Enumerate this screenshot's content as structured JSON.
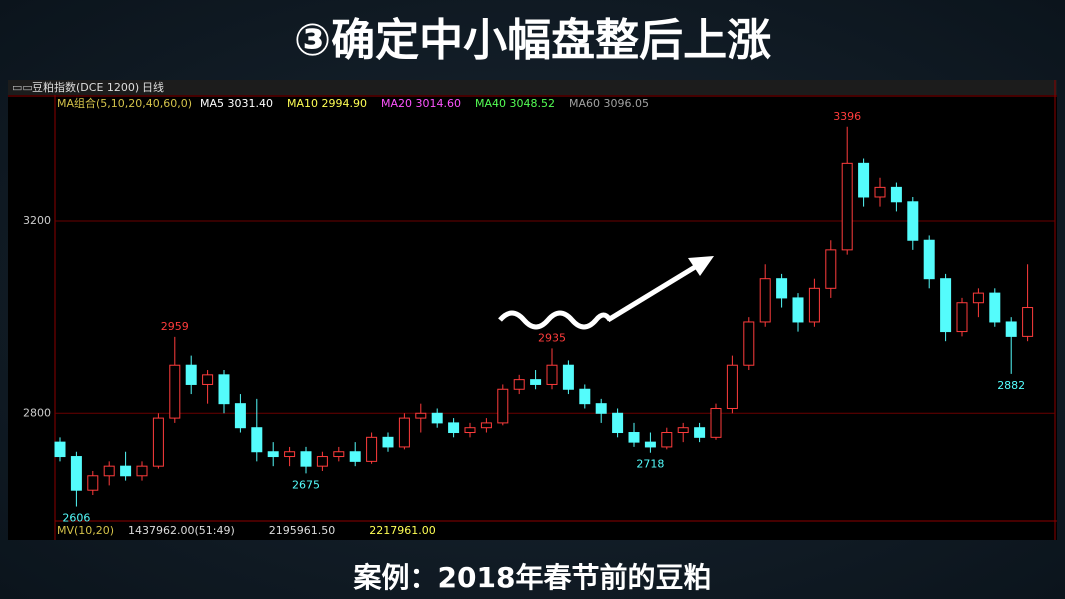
{
  "title": "③确定中小幅盘整后上涨",
  "caption": "案例：2018年春节前的豆粕",
  "chart_data": {
    "type": "candlestick",
    "symbol": "豆粕指数(DCE 1200)",
    "period": "日线",
    "indicator_title": "MA组合(5,10,20,40,60,0)",
    "indicators": [
      {
        "label": "MA5 3031.40",
        "color": "#ffffff"
      },
      {
        "label": "MA10 2994.90",
        "color": "#ffff54"
      },
      {
        "label": "MA20 3014.60",
        "color": "#ff54ff"
      },
      {
        "label": "MA40 3048.52",
        "color": "#54ff54"
      },
      {
        "label": "MA60 3096.05",
        "color": "#a0a0a0"
      }
    ],
    "volume_title": "MV(10,20)",
    "volume_labels": [
      "1437962.00(51:49)",
      "2195961.50",
      "2217961.00"
    ],
    "up_color": "#ff3c3c",
    "down_color": "#54fcfc",
    "ylim": [
      2578,
      3458
    ],
    "yticks": [
      2800,
      3200
    ],
    "grid": true,
    "candles": [
      [
        2740,
        2750,
        2700,
        2710
      ],
      [
        2710,
        2720,
        2606,
        2640
      ],
      [
        2640,
        2680,
        2630,
        2670
      ],
      [
        2670,
        2700,
        2650,
        2690
      ],
      [
        2690,
        2720,
        2660,
        2670
      ],
      [
        2670,
        2700,
        2660,
        2690
      ],
      [
        2690,
        2800,
        2685,
        2790
      ],
      [
        2790,
        2959,
        2780,
        2900
      ],
      [
        2900,
        2920,
        2840,
        2860
      ],
      [
        2860,
        2890,
        2820,
        2880
      ],
      [
        2880,
        2890,
        2800,
        2820
      ],
      [
        2820,
        2840,
        2760,
        2770
      ],
      [
        2770,
        2830,
        2700,
        2720
      ],
      [
        2720,
        2740,
        2690,
        2710
      ],
      [
        2710,
        2730,
        2690,
        2720
      ],
      [
        2720,
        2730,
        2675,
        2690
      ],
      [
        2690,
        2720,
        2680,
        2710
      ],
      [
        2710,
        2730,
        2700,
        2720
      ],
      [
        2720,
        2740,
        2690,
        2700
      ],
      [
        2700,
        2760,
        2695,
        2750
      ],
      [
        2750,
        2760,
        2720,
        2730
      ],
      [
        2730,
        2800,
        2725,
        2790
      ],
      [
        2790,
        2820,
        2760,
        2800
      ],
      [
        2800,
        2810,
        2770,
        2780
      ],
      [
        2780,
        2790,
        2750,
        2760
      ],
      [
        2760,
        2780,
        2750,
        2770
      ],
      [
        2770,
        2790,
        2760,
        2780
      ],
      [
        2780,
        2860,
        2775,
        2850
      ],
      [
        2850,
        2880,
        2840,
        2870
      ],
      [
        2870,
        2890,
        2850,
        2860
      ],
      [
        2860,
        2935,
        2850,
        2900
      ],
      [
        2900,
        2910,
        2840,
        2850
      ],
      [
        2850,
        2860,
        2810,
        2820
      ],
      [
        2820,
        2830,
        2780,
        2800
      ],
      [
        2800,
        2810,
        2750,
        2760
      ],
      [
        2760,
        2780,
        2730,
        2740
      ],
      [
        2740,
        2760,
        2718,
        2730
      ],
      [
        2730,
        2770,
        2725,
        2760
      ],
      [
        2760,
        2780,
        2740,
        2770
      ],
      [
        2770,
        2780,
        2740,
        2750
      ],
      [
        2750,
        2820,
        2745,
        2810
      ],
      [
        2810,
        2920,
        2800,
        2900
      ],
      [
        2900,
        3000,
        2890,
        2990
      ],
      [
        2990,
        3110,
        2980,
        3080
      ],
      [
        3080,
        3090,
        3020,
        3040
      ],
      [
        3040,
        3050,
        2970,
        2990
      ],
      [
        2990,
        3080,
        2980,
        3060
      ],
      [
        3060,
        3160,
        3040,
        3140
      ],
      [
        3140,
        3396,
        3130,
        3320
      ],
      [
        3320,
        3330,
        3230,
        3250
      ],
      [
        3250,
        3290,
        3230,
        3270
      ],
      [
        3270,
        3280,
        3220,
        3240
      ],
      [
        3240,
        3250,
        3140,
        3160
      ],
      [
        3160,
        3170,
        3060,
        3080
      ],
      [
        3080,
        3090,
        2950,
        2970
      ],
      [
        2970,
        3040,
        2960,
        3030
      ],
      [
        3030,
        3060,
        3000,
        3050
      ],
      [
        3050,
        3060,
        2980,
        2990
      ],
      [
        2990,
        3000,
        2882,
        2960
      ],
      [
        2960,
        3110,
        2950,
        3020
      ]
    ],
    "extremes": [
      {
        "at": 1,
        "value": 2606,
        "kind": "low"
      },
      {
        "at": 7,
        "value": 2959,
        "kind": "high"
      },
      {
        "at": 15,
        "value": 2675,
        "kind": "low"
      },
      {
        "at": 30,
        "value": 2935,
        "kind": "high"
      },
      {
        "at": 36,
        "value": 2718,
        "kind": "low"
      },
      {
        "at": 48,
        "value": 3396,
        "kind": "high"
      },
      {
        "at": 58,
        "value": 2882,
        "kind": "low"
      }
    ]
  }
}
